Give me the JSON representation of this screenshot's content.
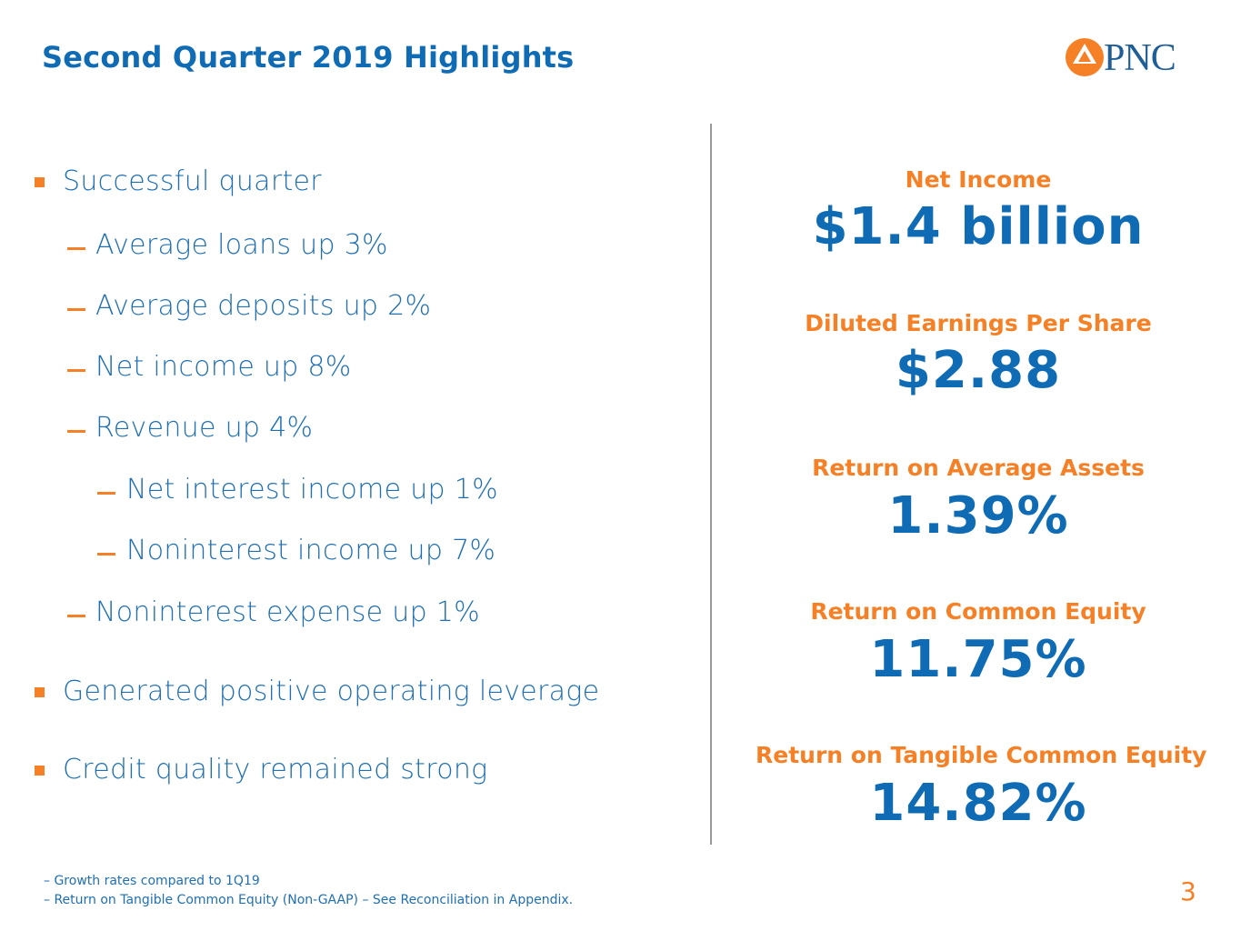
{
  "slide": {
    "title": "Second Quarter 2019 Highlights",
    "page_number": "3",
    "logo": {
      "text": "PNC",
      "icon": "pnc-logo-icon",
      "colors": {
        "mark": "#F58025",
        "text": "#1F5E97"
      }
    }
  },
  "highlights": {
    "successful_quarter": "Successful quarter",
    "avg_loans": "Average loans up 3%",
    "avg_deposits": "Average deposits up 2%",
    "net_income": "Net income up 8%",
    "revenue": "Revenue up 4%",
    "nii": "Net interest income up 1%",
    "nonint_income": "Noninterest income up 7%",
    "nonint_expense": "Noninterest expense up 1%",
    "operating_leverage": "Generated positive operating leverage",
    "credit_quality": "Credit quality remained strong"
  },
  "metrics": [
    {
      "label": "Net Income",
      "value": "$1.4 billion"
    },
    {
      "label": "Diluted Earnings Per Share",
      "value": "$2.88"
    },
    {
      "label": "Return on Average Assets",
      "value": "1.39%"
    },
    {
      "label": "Return on Common Equity",
      "value": "11.75%"
    },
    {
      "label": "Return on Tangible Common Equity",
      "value": "14.82%"
    }
  ],
  "footnotes": [
    "– Growth rates compared to 1Q19",
    "– Return on Tangible Common Equity (Non-GAAP) – See Reconciliation in Appendix."
  ],
  "colors": {
    "blue": "#0F6CB4",
    "orange": "#F58025"
  }
}
